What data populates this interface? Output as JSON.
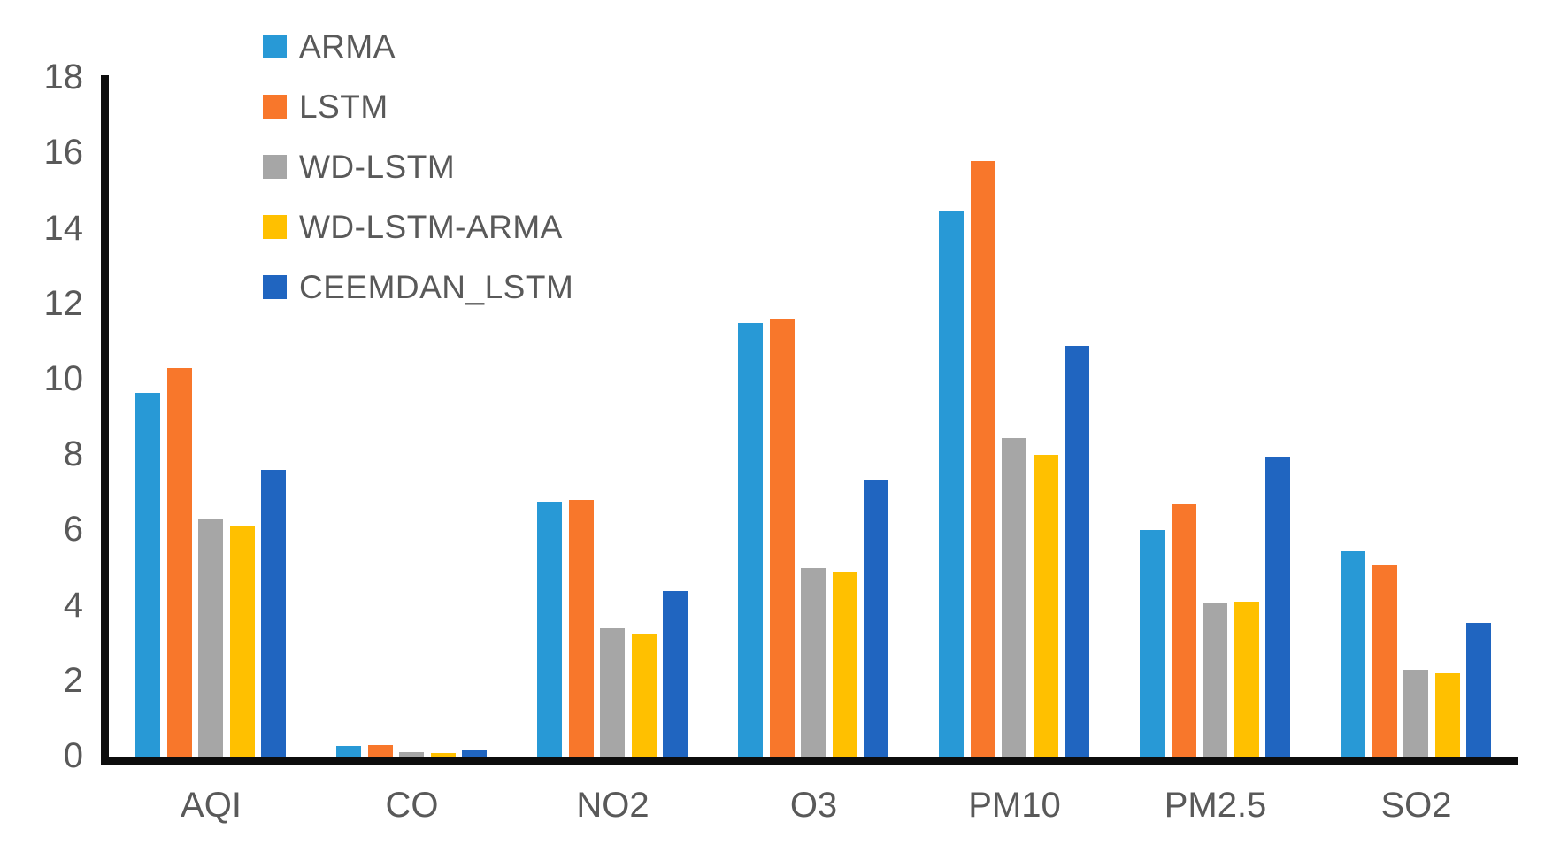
{
  "chart_data": {
    "type": "bar",
    "title": "",
    "xlabel": "",
    "ylabel": "",
    "categories": [
      "AQI",
      "CO",
      "NO2",
      "O3",
      "PM10",
      "PM2.5",
      "SO2"
    ],
    "series": [
      {
        "name": "ARMA",
        "color": "#2899D6",
        "values": [
          9.65,
          0.27,
          6.75,
          11.5,
          14.45,
          6.0,
          5.45
        ]
      },
      {
        "name": "LSTM",
        "color": "#F8772B",
        "values": [
          10.3,
          0.3,
          6.8,
          11.6,
          15.8,
          6.7,
          5.1
        ]
      },
      {
        "name": "WD-LSTM",
        "color": "#A6A6A6",
        "values": [
          6.3,
          0.12,
          3.4,
          5.0,
          8.45,
          4.05,
          2.3
        ]
      },
      {
        "name": "WD-LSTM-ARMA",
        "color": "#FFC000",
        "values": [
          6.1,
          0.1,
          3.25,
          4.9,
          8.0,
          4.1,
          2.2
        ]
      },
      {
        "name": "CEEMDAN_LSTM",
        "color": "#2065C0",
        "values": [
          7.6,
          0.17,
          4.4,
          7.35,
          10.9,
          7.95,
          3.55
        ]
      }
    ],
    "ylim": [
      0,
      18
    ],
    "yticks": [
      0,
      2,
      4,
      6,
      8,
      10,
      12,
      14,
      16,
      18
    ],
    "ytick_labels": [
      "0",
      "2",
      "4",
      "6",
      "8",
      "10",
      "12",
      "14",
      "16",
      "18"
    ],
    "grid": false,
    "legend_position": "top-left-inside",
    "axis_color": "#0d0d0d",
    "label_color": "#595959"
  }
}
